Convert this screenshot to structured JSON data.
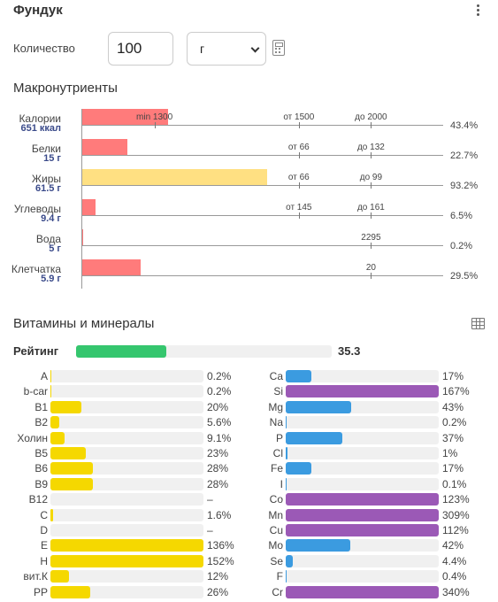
{
  "header": {
    "title": "Фундук"
  },
  "quantity": {
    "label": "Количество",
    "value": "100",
    "unit": "г"
  },
  "macro": {
    "title": "Макронутриенты",
    "scale_max_percent": 100,
    "rows": [
      {
        "name": "Калории",
        "amount": "651 ккал",
        "percent_label": "43.4%",
        "fill_percent": 43.4,
        "color": "#ff7b7b",
        "ticks": [
          {
            "label": "min 1300",
            "pos_percent": 20
          },
          {
            "label": "от 1500",
            "pos_percent": 60
          },
          {
            "label": "до 2000",
            "pos_percent": 80
          }
        ]
      },
      {
        "name": "Белки",
        "amount": "15 г",
        "percent_label": "22.7%",
        "fill_percent": 22.7,
        "color": "#ff7b7b",
        "ticks": [
          {
            "label": "от 66",
            "pos_percent": 60
          },
          {
            "label": "до 132",
            "pos_percent": 80
          }
        ]
      },
      {
        "name": "Жиры",
        "amount": "61.5 г",
        "percent_label": "93.2%",
        "fill_percent": 93.2,
        "color": "#ffe082",
        "ticks": [
          {
            "label": "от 66",
            "pos_percent": 60
          },
          {
            "label": "до 99",
            "pos_percent": 80
          }
        ]
      },
      {
        "name": "Углеводы",
        "amount": "9.4 г",
        "percent_label": "6.5%",
        "fill_percent": 6.5,
        "color": "#ff7b7b",
        "ticks": [
          {
            "label": "от 145",
            "pos_percent": 60
          },
          {
            "label": "до 161",
            "pos_percent": 80
          }
        ]
      },
      {
        "name": "Вода",
        "amount": "5 г",
        "percent_label": "0.2%",
        "fill_percent": 0.2,
        "color": "#ff7b7b",
        "ticks": [
          {
            "label": "2295",
            "pos_percent": 80
          }
        ]
      },
      {
        "name": "Клетчатка",
        "amount": "5.9 г",
        "percent_label": "29.5%",
        "fill_percent": 29.5,
        "color": "#ff7b7b",
        "ticks": [
          {
            "label": "20",
            "pos_percent": 80
          }
        ]
      }
    ]
  },
  "vitamins": {
    "title": "Витамины и минералы",
    "rating_label": "Рейтинг",
    "rating_value": "35.3",
    "rating_fill_percent": 35.3,
    "rating_color": "#35c66e",
    "vitamin_color": "#f5d800",
    "mineral_color": "#3b9be0",
    "mineral_over_color": "#9b59b6",
    "vitamins_list": [
      {
        "name": "A",
        "label": "0.2%",
        "value": 0.2
      },
      {
        "name": "b-car",
        "label": "0.2%",
        "value": 0.2
      },
      {
        "name": "B1",
        "label": "20%",
        "value": 20
      },
      {
        "name": "B2",
        "label": "5.6%",
        "value": 5.6
      },
      {
        "name": "Холин",
        "label": "9.1%",
        "value": 9.1
      },
      {
        "name": "B5",
        "label": "23%",
        "value": 23
      },
      {
        "name": "B6",
        "label": "28%",
        "value": 28
      },
      {
        "name": "B9",
        "label": "28%",
        "value": 28
      },
      {
        "name": "B12",
        "label": "–",
        "value": 0
      },
      {
        "name": "C",
        "label": "1.6%",
        "value": 1.6
      },
      {
        "name": "D",
        "label": "–",
        "value": 0
      },
      {
        "name": "E",
        "label": "136%",
        "value": 136
      },
      {
        "name": "H",
        "label": "152%",
        "value": 152
      },
      {
        "name": "вит.К",
        "label": "12%",
        "value": 12
      },
      {
        "name": "PP",
        "label": "26%",
        "value": 26
      }
    ],
    "minerals_list": [
      {
        "name": "Ca",
        "label": "17%",
        "value": 17
      },
      {
        "name": "Si",
        "label": "167%",
        "value": 167
      },
      {
        "name": "Mg",
        "label": "43%",
        "value": 43
      },
      {
        "name": "Na",
        "label": "0.2%",
        "value": 0.2
      },
      {
        "name": "P",
        "label": "37%",
        "value": 37
      },
      {
        "name": "Cl",
        "label": "1%",
        "value": 1
      },
      {
        "name": "Fe",
        "label": "17%",
        "value": 17
      },
      {
        "name": "I",
        "label": "0.1%",
        "value": 0.1
      },
      {
        "name": "Co",
        "label": "123%",
        "value": 123
      },
      {
        "name": "Mn",
        "label": "309%",
        "value": 309
      },
      {
        "name": "Cu",
        "label": "112%",
        "value": 112
      },
      {
        "name": "Mo",
        "label": "42%",
        "value": 42
      },
      {
        "name": "Se",
        "label": "4.4%",
        "value": 4.4
      },
      {
        "name": "F",
        "label": "0.4%",
        "value": 0.4
      },
      {
        "name": "Cr",
        "label": "340%",
        "value": 340
      }
    ]
  }
}
